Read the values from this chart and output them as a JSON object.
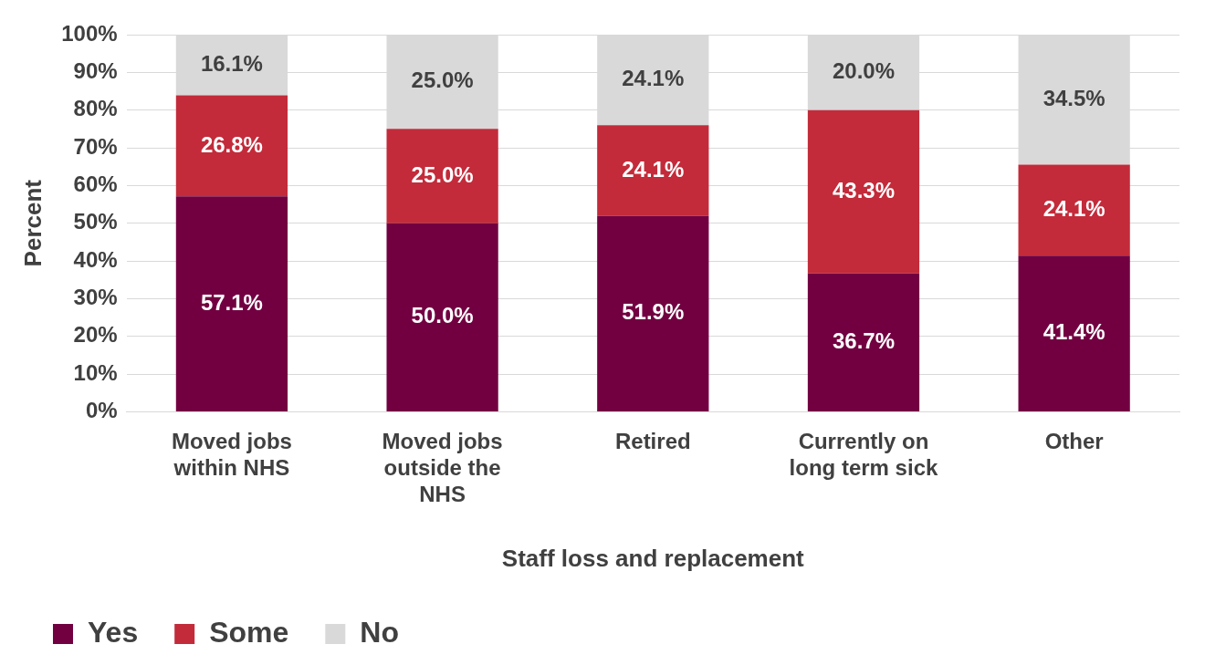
{
  "chart_data": {
    "type": "bar",
    "stacked": true,
    "xlabel": "Staff loss and replacement",
    "ylabel": "Percent",
    "categories": [
      "Moved jobs within NHS",
      "Moved jobs outside the NHS",
      "Retired",
      "Currently on long term sick",
      "Other"
    ],
    "series": [
      {
        "name": "Yes",
        "color": "#720041",
        "values": [
          57.1,
          50.0,
          51.9,
          36.7,
          41.4
        ],
        "value_labels": [
          "57.1%",
          "50.0%",
          "51.9%",
          "36.7%",
          "41.4%"
        ]
      },
      {
        "name": "Some",
        "color": "#c32b3a",
        "values": [
          26.8,
          25.0,
          24.1,
          43.3,
          24.1
        ],
        "value_labels": [
          "26.8%",
          "25.0%",
          "24.1%",
          "43.3%",
          "24.1%"
        ]
      },
      {
        "name": "No",
        "color": "#d9d9d9",
        "values": [
          16.1,
          25.0,
          24.1,
          20.0,
          34.5
        ],
        "value_labels": [
          "16.1%",
          "25.0%",
          "24.1%",
          "20.0%",
          "34.5%"
        ]
      }
    ],
    "ylim": [
      0,
      100
    ],
    "yticks": [
      {
        "value": 0,
        "label": "0%"
      },
      {
        "value": 10,
        "label": "10%"
      },
      {
        "value": 20,
        "label": "20%"
      },
      {
        "value": 30,
        "label": "30%"
      },
      {
        "value": 40,
        "label": "40%"
      },
      {
        "value": 50,
        "label": "50%"
      },
      {
        "value": 60,
        "label": "60%"
      },
      {
        "value": 70,
        "label": "70%"
      },
      {
        "value": 80,
        "label": "80%"
      },
      {
        "value": 90,
        "label": "90%"
      },
      {
        "value": 100,
        "label": "100%"
      }
    ],
    "grid": "y",
    "legend": "bottom left"
  }
}
